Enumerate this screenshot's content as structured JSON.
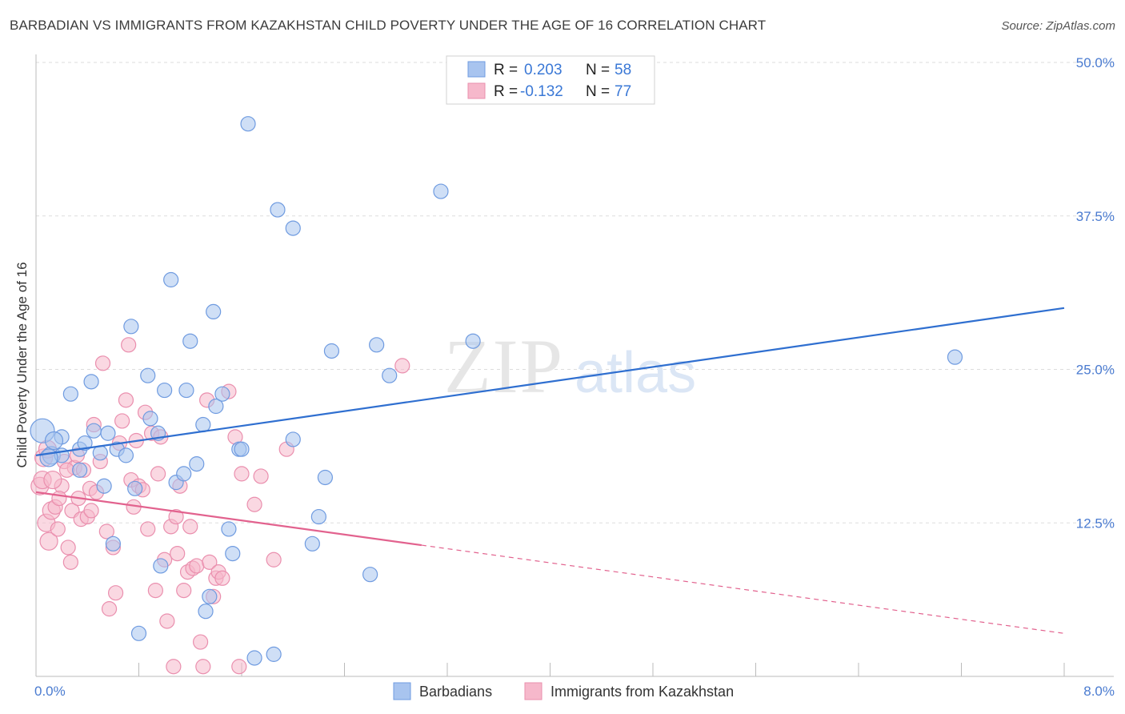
{
  "title": "BARBADIAN VS IMMIGRANTS FROM KAZAKHSTAN CHILD POVERTY UNDER THE AGE OF 16 CORRELATION CHART",
  "source": "Source: ZipAtlas.com",
  "watermark": {
    "zip": "ZIP",
    "atlas": "atlas"
  },
  "colors": {
    "blue_fill": "#a8c4ef",
    "blue_stroke": "#6f9be0",
    "blue_line": "#2f6fd0",
    "pink_fill": "#f6b8cb",
    "pink_stroke": "#ea8fae",
    "pink_line": "#e2628e",
    "accent_text": "#3a78d6",
    "grid": "#dddddd"
  },
  "legend": {
    "rows": [
      {
        "r_label": "R =",
        "r_value": "0.203",
        "n_label": "N =",
        "n_value": "58"
      },
      {
        "r_label": "R =",
        "r_value": "-0.132",
        "n_label": "N =",
        "n_value": "77"
      }
    ]
  },
  "chart_data": {
    "type": "scatter",
    "title": "BARBADIAN VS IMMIGRANTS FROM KAZAKHSTAN CHILD POVERTY UNDER THE AGE OF 16 CORRELATION CHART",
    "xlabel": "",
    "ylabel": "Child Poverty Under the Age of 16",
    "xlim": [
      0,
      8
    ],
    "ylim": [
      0,
      50
    ],
    "x_tick_labels": [
      "0.0%",
      "8.0%"
    ],
    "y_ticks": [
      12.5,
      25.0,
      37.5,
      50.0
    ],
    "y_tick_labels": [
      "12.5%",
      "25.0%",
      "37.5%",
      "50.0%"
    ],
    "grid": true,
    "legend_position": "top-center",
    "series": [
      {
        "name": "Barbadians",
        "r": 0.203,
        "n": 58,
        "trend": {
          "x": [
            0.0,
            8.0
          ],
          "y": [
            18.0,
            30.0
          ],
          "dashed_from": null
        },
        "points": [
          [
            0.05,
            20.0
          ],
          [
            0.12,
            18.0
          ],
          [
            0.2,
            18.0
          ],
          [
            0.2,
            19.5
          ],
          [
            0.27,
            23.0
          ],
          [
            0.34,
            16.8
          ],
          [
            0.34,
            18.5
          ],
          [
            0.38,
            19.0
          ],
          [
            0.43,
            24.0
          ],
          [
            0.45,
            20.0
          ],
          [
            0.5,
            18.2
          ],
          [
            0.53,
            15.5
          ],
          [
            0.56,
            19.8
          ],
          [
            0.6,
            10.8
          ],
          [
            0.63,
            18.5
          ],
          [
            0.7,
            18.0
          ],
          [
            0.74,
            28.5
          ],
          [
            0.77,
            15.3
          ],
          [
            0.8,
            3.5
          ],
          [
            0.87,
            24.5
          ],
          [
            0.89,
            21.0
          ],
          [
            0.95,
            19.8
          ],
          [
            0.97,
            9.0
          ],
          [
            1.0,
            23.3
          ],
          [
            1.05,
            32.3
          ],
          [
            1.09,
            15.8
          ],
          [
            1.15,
            16.5
          ],
          [
            1.17,
            23.3
          ],
          [
            1.2,
            27.3
          ],
          [
            1.25,
            17.3
          ],
          [
            1.3,
            20.5
          ],
          [
            1.32,
            5.3
          ],
          [
            1.35,
            6.5
          ],
          [
            1.38,
            29.7
          ],
          [
            1.4,
            22.0
          ],
          [
            1.45,
            23.0
          ],
          [
            1.5,
            12.0
          ],
          [
            1.53,
            10.0
          ],
          [
            1.58,
            18.5
          ],
          [
            1.6,
            18.5
          ],
          [
            1.65,
            45.0
          ],
          [
            1.7,
            1.5
          ],
          [
            1.85,
            1.8
          ],
          [
            1.88,
            38.0
          ],
          [
            2.0,
            36.5
          ],
          [
            2.0,
            19.3
          ],
          [
            2.15,
            10.8
          ],
          [
            2.2,
            13.0
          ],
          [
            2.3,
            26.5
          ],
          [
            2.25,
            16.2
          ],
          [
            2.6,
            8.3
          ],
          [
            2.65,
            27.0
          ],
          [
            2.75,
            24.5
          ],
          [
            3.15,
            39.5
          ],
          [
            3.4,
            27.3
          ],
          [
            7.15,
            26.0
          ],
          [
            0.1,
            17.8
          ],
          [
            0.14,
            19.2
          ]
        ]
      },
      {
        "name": "Immigrants from Kazakhstan",
        "r": -0.132,
        "n": 77,
        "trend": {
          "x": [
            0.0,
            8.0
          ],
          "y": [
            15.0,
            3.5
          ],
          "dashed_from": 3.0
        },
        "points": [
          [
            0.03,
            15.5
          ],
          [
            0.05,
            16.0
          ],
          [
            0.08,
            12.5
          ],
          [
            0.1,
            11.0
          ],
          [
            0.12,
            13.5
          ],
          [
            0.15,
            13.8
          ],
          [
            0.17,
            12.0
          ],
          [
            0.2,
            15.5
          ],
          [
            0.22,
            17.5
          ],
          [
            0.25,
            10.5
          ],
          [
            0.27,
            9.3
          ],
          [
            0.28,
            13.5
          ],
          [
            0.3,
            17.0
          ],
          [
            0.32,
            18.0
          ],
          [
            0.35,
            12.8
          ],
          [
            0.37,
            16.8
          ],
          [
            0.4,
            13.0
          ],
          [
            0.42,
            15.3
          ],
          [
            0.45,
            20.5
          ],
          [
            0.47,
            15.0
          ],
          [
            0.5,
            17.5
          ],
          [
            0.52,
            25.5
          ],
          [
            0.55,
            11.8
          ],
          [
            0.57,
            5.5
          ],
          [
            0.6,
            10.5
          ],
          [
            0.62,
            6.8
          ],
          [
            0.65,
            19.0
          ],
          [
            0.67,
            20.8
          ],
          [
            0.7,
            22.5
          ],
          [
            0.72,
            27.0
          ],
          [
            0.74,
            16.0
          ],
          [
            0.76,
            13.8
          ],
          [
            0.78,
            19.2
          ],
          [
            0.8,
            15.5
          ],
          [
            0.83,
            15.2
          ],
          [
            0.85,
            21.5
          ],
          [
            0.87,
            12.0
          ],
          [
            0.9,
            19.8
          ],
          [
            0.93,
            7.0
          ],
          [
            0.95,
            16.5
          ],
          [
            0.97,
            19.5
          ],
          [
            1.0,
            9.5
          ],
          [
            1.02,
            4.5
          ],
          [
            1.05,
            12.2
          ],
          [
            1.07,
            0.8
          ],
          [
            1.09,
            13.0
          ],
          [
            1.1,
            10.0
          ],
          [
            1.12,
            15.5
          ],
          [
            1.15,
            7.0
          ],
          [
            1.18,
            8.5
          ],
          [
            1.2,
            12.2
          ],
          [
            1.22,
            8.8
          ],
          [
            1.25,
            9.0
          ],
          [
            1.28,
            2.8
          ],
          [
            1.3,
            0.8
          ],
          [
            1.33,
            22.5
          ],
          [
            1.35,
            9.3
          ],
          [
            1.38,
            6.5
          ],
          [
            1.4,
            8.0
          ],
          [
            1.42,
            8.5
          ],
          [
            1.45,
            8.0
          ],
          [
            1.5,
            23.2
          ],
          [
            1.55,
            19.5
          ],
          [
            1.58,
            0.8
          ],
          [
            1.6,
            16.5
          ],
          [
            1.7,
            14.0
          ],
          [
            1.75,
            16.3
          ],
          [
            1.85,
            9.5
          ],
          [
            1.95,
            18.5
          ],
          [
            2.85,
            25.3
          ],
          [
            0.06,
            17.8
          ],
          [
            0.09,
            18.5
          ],
          [
            0.13,
            16.0
          ],
          [
            0.18,
            14.5
          ],
          [
            0.24,
            16.8
          ],
          [
            0.33,
            14.5
          ],
          [
            0.43,
            13.5
          ]
        ]
      }
    ]
  },
  "bottom_legend": {
    "items": [
      {
        "label": "Barbadians"
      },
      {
        "label": "Immigrants from Kazakhstan"
      }
    ]
  }
}
